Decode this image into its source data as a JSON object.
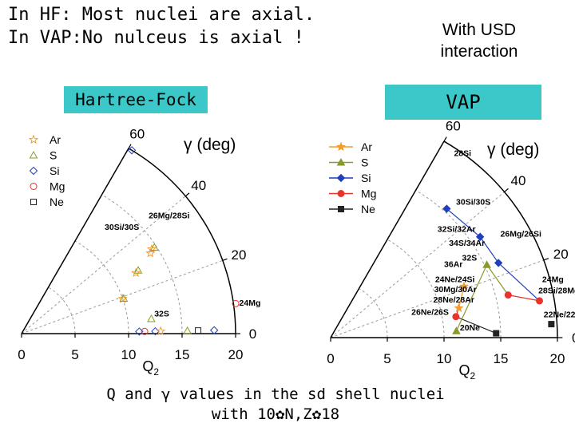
{
  "header": {
    "line1": "In HF: Most nuclei are axial.",
    "line2": "In VAP:No nulceus is axial !",
    "interaction_line1": "With USD",
    "interaction_line2": "interaction"
  },
  "caption": {
    "line1": "Q and γ values in the sd shell nuclei",
    "line2": "with 10✿N,Z✿18"
  },
  "colors": {
    "label_box": "#3cc8c8",
    "Ar": "#f39c2b",
    "S": "#8a9a2a",
    "Si": "#1f3fbf",
    "Mg": "#e8342a",
    "Ne": "#222222"
  },
  "chart_data": [
    {
      "type": "scatter",
      "label": "Hartree-Fock",
      "gamma_label": "γ (deg)",
      "xlabel": "Q",
      "xlabel_sub": "2",
      "x_ticks": [
        "0",
        "5",
        "10",
        "15",
        "20"
      ],
      "gamma_ticks": [
        "0",
        "20",
        "40",
        "60"
      ],
      "xlim": [
        0,
        20
      ],
      "gamma_lim": [
        0,
        60
      ],
      "legend": [
        "Ar",
        "S",
        "Si",
        "Mg",
        "Ne"
      ],
      "points": [
        {
          "series": "Si",
          "Q": 20,
          "gamma": 59
        },
        {
          "series": "Ar",
          "Q": 14.5,
          "gamma": 33
        },
        {
          "series": "Ar",
          "Q": 14.2,
          "gamma": 32
        },
        {
          "series": "S",
          "Q": 14.8,
          "gamma": 33
        },
        {
          "series": "Ar",
          "Q": 12.1,
          "gamma": 28
        },
        {
          "series": "S",
          "Q": 12.4,
          "gamma": 28.5
        },
        {
          "series": "Ar",
          "Q": 10,
          "gamma": 19
        },
        {
          "series": "S",
          "Q": 10.1,
          "gamma": 19
        },
        {
          "series": "Mg",
          "Q": 20.2,
          "gamma": 8
        },
        {
          "series": "S",
          "Q": 12.2,
          "gamma": 6.5
        },
        {
          "series": "Si",
          "Q": 11,
          "gamma": 1
        },
        {
          "series": "Si",
          "Q": 12.5,
          "gamma": 1
        },
        {
          "series": "Mg",
          "Q": 11.5,
          "gamma": 1
        },
        {
          "series": "Ar",
          "Q": 13,
          "gamma": 1
        },
        {
          "series": "S",
          "Q": 15.5,
          "gamma": 1
        },
        {
          "series": "Ne",
          "Q": 16.5,
          "gamma": 1
        },
        {
          "series": "Si",
          "Q": 18,
          "gamma": 1
        }
      ],
      "annotations": [
        {
          "text": "30Si/30S",
          "Q": 13.5,
          "gamma": 46
        },
        {
          "text": "26Mg/28Si",
          "Q": 17.5,
          "gamma": 38
        },
        {
          "text": "32S",
          "Q": 13.2,
          "gamma": 7
        },
        {
          "text": "24Mg",
          "Q": 21.5,
          "gamma": 7
        }
      ]
    },
    {
      "type": "scatter",
      "label": "VAP",
      "gamma_label": "γ (deg)",
      "xlabel": "Q",
      "xlabel_sub": "2",
      "x_ticks": [
        "0",
        "5",
        "10",
        "15",
        "20"
      ],
      "gamma_ticks": [
        "0",
        "20",
        "40",
        "60"
      ],
      "xlim": [
        0,
        20
      ],
      "gamma_lim": [
        0,
        60
      ],
      "legend": [
        "Ar",
        "S",
        "Si",
        "Mg",
        "Ne"
      ],
      "points": [
        {
          "series": "Si",
          "Q": 15.3,
          "gamma": 48
        },
        {
          "series": "Si",
          "Q": 15.9,
          "gamma": 34
        },
        {
          "series": "Si",
          "Q": 16.2,
          "gamma": 24
        },
        {
          "series": "S",
          "Q": 15.2,
          "gamma": 25
        },
        {
          "series": "Ar",
          "Q": 12.6,
          "gamma": 21
        },
        {
          "series": "Mg",
          "Q": 16.1,
          "gamma": 13.5
        },
        {
          "series": "Mg",
          "Q": 18.7,
          "gamma": 10
        },
        {
          "series": "Ar",
          "Q": 11.6,
          "gamma": 13
        },
        {
          "series": "Mg",
          "Q": 11.2,
          "gamma": 9.5
        },
        {
          "series": "S",
          "Q": 11.1,
          "gamma": 3
        },
        {
          "series": "Ne",
          "Q": 14.6,
          "gamma": 1.5
        },
        {
          "series": "Ne",
          "Q": 19.5,
          "gamma": 3.5
        }
      ],
      "annotations": [
        {
          "text": "28Si",
          "Q": 19.8,
          "gamma": 54
        },
        {
          "text": "30Si/30S",
          "Q": 17.2,
          "gamma": 43
        },
        {
          "text": "32Si/32Ar",
          "Q": 14.5,
          "gamma": 40
        },
        {
          "text": "32S",
          "Q": 14,
          "gamma": 29
        },
        {
          "text": "34S/34Ar",
          "Q": 14.5,
          "gamma": 34
        },
        {
          "text": "36Ar",
          "Q": 12.5,
          "gamma": 30
        },
        {
          "text": "24Ne/24Si",
          "Q": 12,
          "gamma": 24
        },
        {
          "text": "30Mg/30Ar",
          "Q": 11.7,
          "gamma": 20
        },
        {
          "text": "28Ne/28Ar",
          "Q": 11.3,
          "gamma": 16
        },
        {
          "text": "26Ne/26S",
          "Q": 9,
          "gamma": 13
        },
        {
          "text": "26Mg/26Si",
          "Q": 19,
          "gamma": 28
        },
        {
          "text": "24Mg",
          "Q": 20.2,
          "gamma": 14
        },
        {
          "text": "28Si/28Mg",
          "Q": 20.5,
          "gamma": 11
        },
        {
          "text": "22Ne/22Mg",
          "Q": 20.8,
          "gamma": 5
        },
        {
          "text": "20Ne",
          "Q": 12.3,
          "gamma": 3
        }
      ]
    }
  ]
}
